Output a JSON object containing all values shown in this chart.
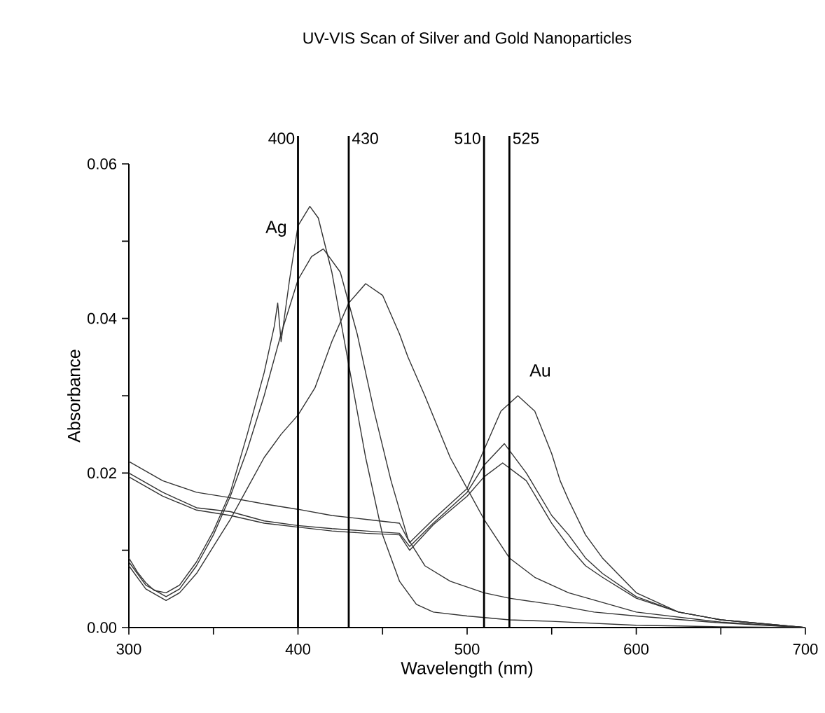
{
  "chart_data": {
    "type": "line",
    "title": "UV-VIS Scan of Silver and Gold Nanoparticles",
    "xlabel": "Wavelength (nm)",
    "ylabel": "Absorbance",
    "xlim": [
      300,
      700
    ],
    "ylim": [
      0,
      0.06
    ],
    "xticks": [
      300,
      {
        "value": 350,
        "label": null
      },
      400,
      {
        "value": 450,
        "label": null
      },
      500,
      {
        "value": 550,
        "label": null
      },
      600,
      {
        "value": 650,
        "label": null
      },
      700
    ],
    "yticks": [
      {
        "value": 0,
        "label": "0.00"
      },
      {
        "value": 0.01,
        "label": null
      },
      {
        "value": 0.02,
        "label": "0.02"
      },
      {
        "value": 0.03,
        "label": null
      },
      {
        "value": 0.04,
        "label": "0.04"
      },
      {
        "value": 0.05,
        "label": null
      },
      {
        "value": 0.06,
        "label": "0.06"
      }
    ],
    "marker": "none",
    "line_style": "solid",
    "series": [
      {
        "color": "#333333",
        "x": [
          300,
          305,
          310,
          315,
          322,
          330,
          340,
          350,
          360,
          370,
          380,
          386,
          388,
          390,
          395,
          400,
          407,
          412,
          420,
          430,
          440,
          450,
          460,
          465,
          470,
          480,
          500,
          525,
          550,
          600,
          625,
          650,
          700
        ],
        "values": [
          0.009,
          0.0072,
          0.0058,
          0.0048,
          0.0045,
          0.0055,
          0.0085,
          0.0125,
          0.0175,
          0.025,
          0.033,
          0.039,
          0.042,
          0.037,
          0.045,
          0.052,
          0.0545,
          0.053,
          0.046,
          0.034,
          0.022,
          0.012,
          0.006,
          0.0045,
          0.003,
          0.002,
          0.0015,
          0.001,
          0.0008,
          0.0003,
          0.0002,
          0.0001,
          0
        ]
      },
      {
        "color": "#333333",
        "x": [
          300,
          310,
          322,
          330,
          340,
          350,
          360,
          370,
          380,
          390,
          400,
          408,
          415,
          425,
          435,
          445,
          455,
          465,
          475,
          490,
          510,
          525,
          550,
          575,
          600,
          650,
          700
        ],
        "values": [
          0.0085,
          0.0055,
          0.004,
          0.005,
          0.008,
          0.012,
          0.017,
          0.023,
          0.03,
          0.038,
          0.045,
          0.048,
          0.049,
          0.046,
          0.038,
          0.028,
          0.019,
          0.0115,
          0.008,
          0.006,
          0.0045,
          0.0038,
          0.003,
          0.002,
          0.0015,
          0.0006,
          0
        ]
      },
      {
        "color": "#333333",
        "x": [
          300,
          310,
          322,
          330,
          340,
          350,
          360,
          370,
          380,
          390,
          400,
          410,
          420,
          430,
          440,
          450,
          460,
          465,
          475,
          490,
          500,
          510,
          525,
          540,
          560,
          600,
          650,
          700
        ],
        "values": [
          0.008,
          0.005,
          0.0035,
          0.0045,
          0.007,
          0.0105,
          0.014,
          0.018,
          0.022,
          0.025,
          0.0275,
          0.031,
          0.037,
          0.042,
          0.0445,
          0.043,
          0.038,
          0.035,
          0.03,
          0.022,
          0.018,
          0.014,
          0.009,
          0.0065,
          0.0045,
          0.002,
          0.0007,
          0
        ]
      },
      {
        "color": "#333333",
        "x": [
          300,
          320,
          340,
          360,
          380,
          400,
          420,
          440,
          460,
          466,
          480,
          500,
          510,
          520,
          530,
          540,
          550,
          555,
          560,
          570,
          580,
          600,
          625,
          650,
          700
        ],
        "values": [
          0.0215,
          0.019,
          0.0175,
          0.0168,
          0.016,
          0.0153,
          0.0145,
          0.014,
          0.0135,
          0.011,
          0.014,
          0.018,
          0.023,
          0.028,
          0.03,
          0.028,
          0.0225,
          0.019,
          0.0165,
          0.012,
          0.009,
          0.0045,
          0.002,
          0.001,
          0
        ]
      },
      {
        "color": "#333333",
        "x": [
          300,
          320,
          340,
          360,
          380,
          400,
          420,
          440,
          460,
          466,
          480,
          500,
          510,
          522,
          535,
          550,
          560,
          570,
          580,
          600,
          625,
          650,
          700
        ],
        "values": [
          0.02,
          0.0175,
          0.0155,
          0.015,
          0.0138,
          0.0132,
          0.0128,
          0.0125,
          0.0122,
          0.0105,
          0.0135,
          0.0175,
          0.021,
          0.0238,
          0.02,
          0.0145,
          0.012,
          0.009,
          0.007,
          0.004,
          0.002,
          0.001,
          0
        ]
      },
      {
        "color": "#333333",
        "x": [
          300,
          320,
          340,
          360,
          380,
          400,
          420,
          440,
          460,
          466,
          480,
          500,
          510,
          521,
          535,
          550,
          560,
          570,
          580,
          600,
          625,
          650,
          700
        ],
        "values": [
          0.0195,
          0.017,
          0.0152,
          0.0145,
          0.0135,
          0.013,
          0.0125,
          0.0122,
          0.012,
          0.01,
          0.0133,
          0.017,
          0.0195,
          0.0213,
          0.019,
          0.0135,
          0.0105,
          0.008,
          0.0065,
          0.0038,
          0.002,
          0.001,
          0
        ]
      }
    ],
    "ref_lines": [
      {
        "axis": "x",
        "value": 400,
        "label": "400",
        "color": "#000000"
      },
      {
        "axis": "x",
        "value": 430,
        "label": "430",
        "color": "#000000"
      },
      {
        "axis": "x",
        "value": 510,
        "label": "510",
        "color": "#000000"
      },
      {
        "axis": "x",
        "value": 525,
        "label": "525",
        "color": "#000000"
      }
    ],
    "annotations": [
      "Ag",
      "Au"
    ]
  }
}
